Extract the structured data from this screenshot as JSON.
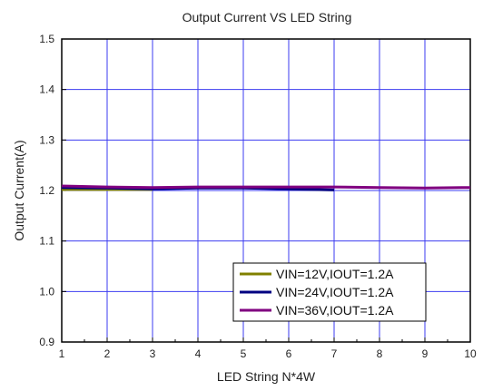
{
  "chart_data": {
    "type": "line",
    "title": "Output Current VS LED String",
    "xlabel": "LED String N*4W",
    "ylabel": "Output Current(A)",
    "xlim": [
      1,
      10
    ],
    "ylim": [
      0.9,
      1.5
    ],
    "x_ticks": [
      "1",
      "2",
      "3",
      "4",
      "5",
      "6",
      "7",
      "8",
      "9",
      "10"
    ],
    "y_ticks": [
      "0.9",
      "1.0",
      "1.1",
      "1.2",
      "1.3",
      "1.4",
      "1.5"
    ],
    "grid": true,
    "legend_position": "bottom-right",
    "series": [
      {
        "name": "VIN=12V,IOUT=1.2A",
        "color": "#808000",
        "x": [
          1,
          2,
          3
        ],
        "y": [
          1.202,
          1.202,
          1.202
        ]
      },
      {
        "name": "VIN=24V,IOUT=1.2A",
        "color": "#000080",
        "x": [
          1,
          2,
          3,
          4,
          5,
          6,
          7
        ],
        "y": [
          1.206,
          1.205,
          1.203,
          1.205,
          1.205,
          1.203,
          1.201
        ]
      },
      {
        "name": "VIN=36V,IOUT=1.2A",
        "color": "#800080",
        "x": [
          1,
          2,
          3,
          4,
          5,
          6,
          7,
          8,
          9,
          10
        ],
        "y": [
          1.209,
          1.207,
          1.206,
          1.207,
          1.207,
          1.207,
          1.207,
          1.206,
          1.205,
          1.206
        ]
      }
    ]
  }
}
